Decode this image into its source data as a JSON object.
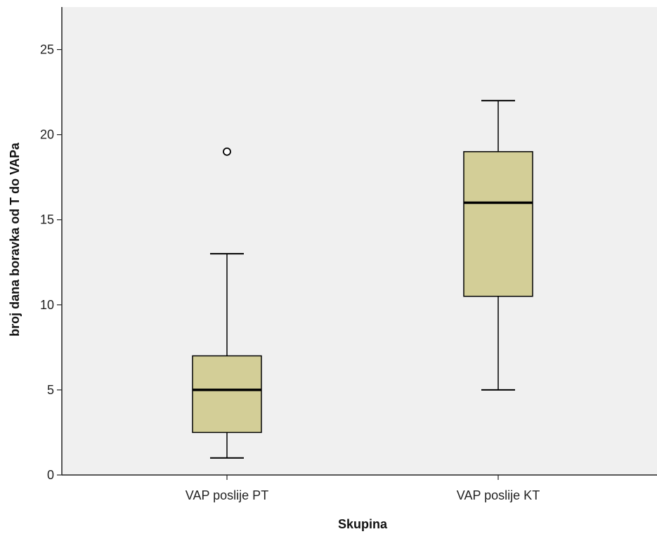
{
  "chart_data": {
    "type": "boxplot",
    "xlabel": "Skupina",
    "ylabel": "broj dana boravka od T do VAPa",
    "ylim": [
      0,
      27.5
    ],
    "yticks": [
      0,
      5,
      10,
      15,
      20,
      25
    ],
    "categories": [
      "VAP poslije PT",
      "VAP poslije KT"
    ],
    "boxes": [
      {
        "category": "VAP poslije PT",
        "whisker_low": 1,
        "q1": 2.5,
        "median": 5,
        "q3": 7,
        "whisker_high": 13,
        "outliers": [
          19
        ]
      },
      {
        "category": "VAP poslije KT",
        "whisker_low": 5,
        "q1": 10.5,
        "median": 16,
        "q3": 19,
        "whisker_high": 22,
        "outliers": []
      }
    ],
    "grid": false,
    "colors": {
      "plot_background": "#f0f0f0",
      "box_fill": "#d3ce97",
      "line": "#000000"
    }
  }
}
